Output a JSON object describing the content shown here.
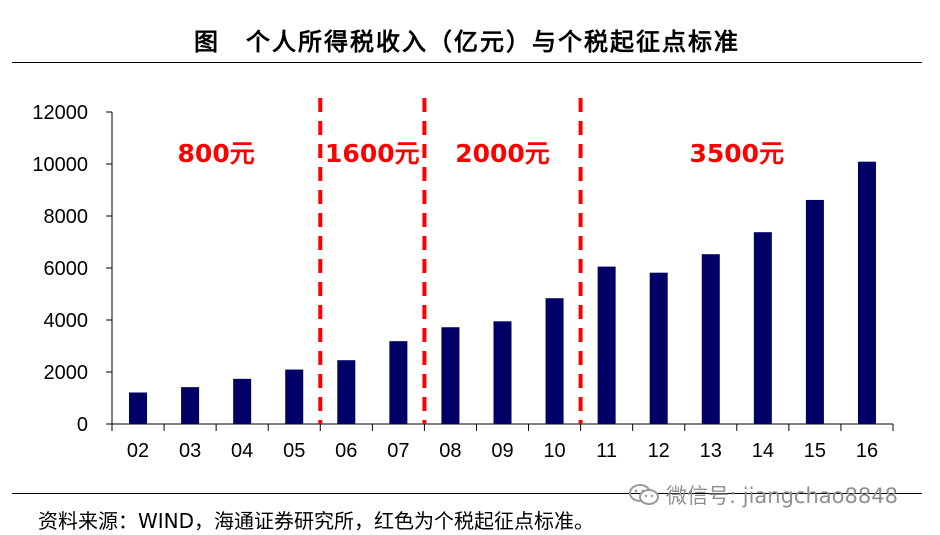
{
  "title": "图　个人所得税收入（亿元）与个税起征点标准",
  "source": "资料来源：WIND，海通证券研究所，红色为个税起征点标准。",
  "watermark": "微信号: jiangchao8848",
  "colors": {
    "bar": "#000066",
    "threshold": "#ff0000"
  },
  "chart_data": {
    "type": "bar",
    "categories": [
      "02",
      "03",
      "04",
      "05",
      "06",
      "07",
      "08",
      "09",
      "10",
      "11",
      "12",
      "13",
      "14",
      "15",
      "16"
    ],
    "values": [
      1212,
      1418,
      1737,
      2094,
      2454,
      3186,
      3722,
      3949,
      4837,
      6054,
      5820,
      6531,
      7377,
      8618,
      10089
    ],
    "ylim": [
      0,
      12000
    ],
    "yticks": [
      0,
      2000,
      4000,
      6000,
      8000,
      10000,
      12000
    ],
    "thresholds": [
      {
        "label": "800元",
        "start": "02",
        "end": "05"
      },
      {
        "label": "1600元",
        "start": "06",
        "end": "07"
      },
      {
        "label": "2000元",
        "start": "08",
        "end": "10"
      },
      {
        "label": "3500元",
        "start": "11",
        "end": "16"
      }
    ],
    "grid": false,
    "legend": "none"
  }
}
